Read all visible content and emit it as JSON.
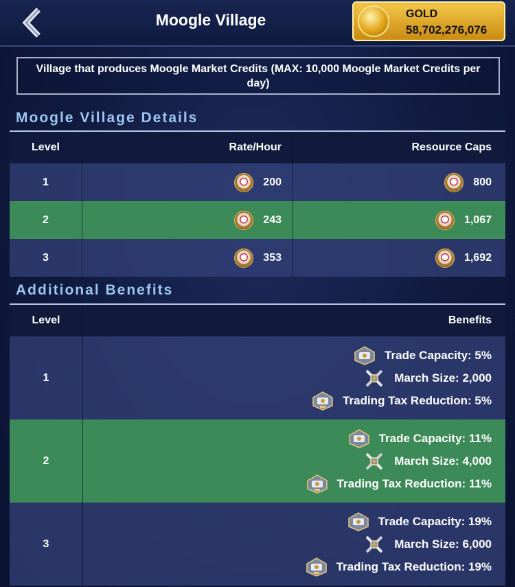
{
  "header": {
    "title": "Moogle Village",
    "gold_label": "GOLD",
    "gold_value": "58,702,276,076"
  },
  "description": "Village that produces Moogle Market Credits (MAX: 10,000 Moogle Market Credits per day)",
  "details": {
    "title": "Moogle Village Details",
    "columns": [
      "Level",
      "Rate/Hour",
      "Resource Caps"
    ],
    "rows": [
      {
        "level": "1",
        "rate": "200",
        "cap": "800"
      },
      {
        "level": "2",
        "rate": "243",
        "cap": "1,067"
      },
      {
        "level": "3",
        "rate": "353",
        "cap": "1,692"
      }
    ],
    "highlight_row": 1
  },
  "benefits": {
    "title": "Additional Benefits",
    "columns": [
      "Level",
      "Benefits"
    ],
    "rows": [
      {
        "level": "1",
        "items": [
          {
            "icon": "trade-capacity-icon",
            "text": "Trade Capacity: 5%"
          },
          {
            "icon": "march-size-icon",
            "text": "March Size: 2,000"
          },
          {
            "icon": "trading-tax-icon",
            "text": "Trading Tax Reduction: 5%"
          }
        ]
      },
      {
        "level": "2",
        "items": [
          {
            "icon": "trade-capacity-icon",
            "text": "Trade Capacity: 11%"
          },
          {
            "icon": "march-size-icon",
            "text": "March Size: 4,000"
          },
          {
            "icon": "trading-tax-icon",
            "text": "Trading Tax Reduction: 11%"
          }
        ]
      },
      {
        "level": "3",
        "items": [
          {
            "icon": "trade-capacity-icon",
            "text": "Trade Capacity: 19%"
          },
          {
            "icon": "march-size-icon",
            "text": "March Size: 6,000"
          },
          {
            "icon": "trading-tax-icon",
            "text": "Trading Tax Reduction: 19%"
          }
        ]
      }
    ],
    "highlight_row": 1
  },
  "colors": {
    "highlight": "#3c8a57",
    "section_title": "#9cc6f0",
    "gold": "#e2a417"
  }
}
